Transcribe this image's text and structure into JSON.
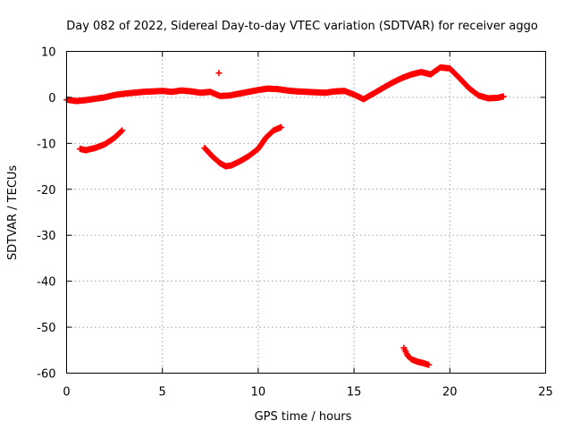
{
  "chart_data": {
    "type": "scatter",
    "title": "Day 082 of 2022, Sidereal Day-to-day VTEC variation (SDTVAR) for receiver aggo",
    "xlabel": "GPS time / hours",
    "ylabel": "SDTVAR / TECUs",
    "xlim": [
      0,
      25
    ],
    "ylim": [
      -60,
      10
    ],
    "xticks": [
      0,
      5,
      10,
      15,
      20,
      25
    ],
    "yticks": [
      -60,
      -50,
      -40,
      -30,
      -20,
      -10,
      0,
      10
    ],
    "grid": true,
    "marker": "plus",
    "color": "#ff0000",
    "series": [
      {
        "name": "main band",
        "x": [
          0.0,
          0.5,
          1.0,
          1.5,
          2.0,
          2.5,
          3.0,
          3.5,
          4.0,
          4.5,
          5.0,
          5.5,
          6.0,
          6.5,
          7.0,
          7.5,
          8.0,
          8.5,
          9.0,
          9.5,
          10.0,
          10.5,
          11.0,
          11.5,
          12.0,
          12.5,
          13.0,
          13.5,
          14.0,
          14.5,
          15.0,
          15.5,
          16.0,
          16.5,
          17.0,
          17.5,
          18.0,
          18.5,
          19.0,
          19.5,
          20.0,
          20.5,
          21.0,
          21.5,
          22.0,
          22.5,
          22.8
        ],
        "y": [
          -0.5,
          -0.8,
          -0.6,
          -0.3,
          0.0,
          0.5,
          0.8,
          1.0,
          1.2,
          1.3,
          1.4,
          1.2,
          1.5,
          1.3,
          1.0,
          1.2,
          0.3,
          0.4,
          0.8,
          1.2,
          1.6,
          1.9,
          1.8,
          1.5,
          1.3,
          1.2,
          1.1,
          1.0,
          1.3,
          1.4,
          0.6,
          -0.4,
          0.8,
          2.0,
          3.2,
          4.2,
          5.0,
          5.5,
          5.0,
          6.5,
          6.3,
          4.2,
          2.0,
          0.4,
          -0.2,
          -0.1,
          0.2
        ]
      },
      {
        "name": "arc 1",
        "x": [
          0.7,
          1.0,
          1.5,
          2.0,
          2.5,
          2.9
        ],
        "y": [
          -11.2,
          -11.5,
          -11.0,
          -10.2,
          -8.8,
          -7.2
        ]
      },
      {
        "name": "arc 2",
        "x": [
          7.2,
          7.6,
          8.0,
          8.3,
          8.6,
          9.0,
          9.5,
          10.0,
          10.4,
          10.8,
          11.2
        ],
        "y": [
          -11.0,
          -12.8,
          -14.3,
          -15.0,
          -14.8,
          -14.0,
          -12.8,
          -11.2,
          -8.8,
          -7.2,
          -6.5
        ]
      },
      {
        "name": "arc 3",
        "x": [
          17.6,
          17.8,
          18.0,
          18.3,
          18.6,
          18.9
        ],
        "y": [
          -54.5,
          -56.2,
          -57.0,
          -57.5,
          -57.8,
          -58.2
        ]
      },
      {
        "name": "outlier",
        "x": [
          7.95
        ],
        "y": [
          5.3
        ]
      }
    ]
  }
}
